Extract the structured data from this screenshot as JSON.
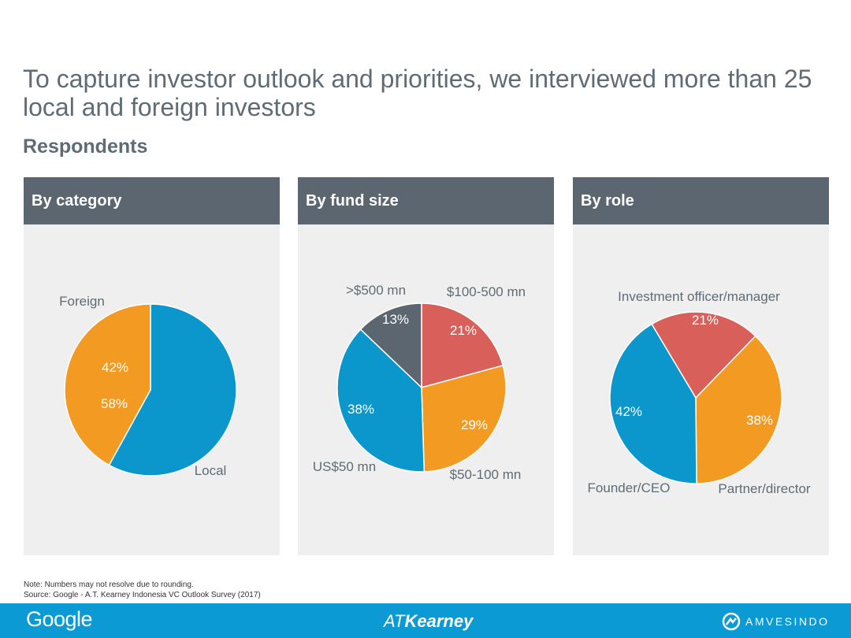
{
  "title": "To capture investor outlook and priorities, we interviewed more than 25 local and foreign investors",
  "subtitle": "Respondents",
  "chart_data": [
    {
      "type": "pie",
      "title": "By category",
      "slices": [
        {
          "label": "Local",
          "value": 58,
          "display": "58%",
          "color": "#0b96cc"
        },
        {
          "label": "Foreign",
          "value": 42,
          "display": "42%",
          "color": "#f29a21"
        }
      ]
    },
    {
      "type": "pie",
      "title": "By fund size",
      "slices": [
        {
          "label": "$100-500 mn",
          "value": 21,
          "display": "21%",
          "color": "#d9605a"
        },
        {
          "label": "$50-100 mn",
          "value": 29,
          "display": "29%",
          "color": "#f29a21"
        },
        {
          "label": "US$50 mn",
          "value": 38,
          "display": "38%",
          "color": "#0b96cc"
        },
        {
          "label": ">$500 mn",
          "value": 13,
          "display": "13%",
          "color": "#5c6670"
        }
      ]
    },
    {
      "type": "pie",
      "title": "By role",
      "slices": [
        {
          "label": "Partner/director",
          "value": 38,
          "display": "38%",
          "color": "#f29a21"
        },
        {
          "label": "Founder/CEO",
          "value": 42,
          "display": "42%",
          "color": "#0b96cc"
        },
        {
          "label": "Investment officer/manager",
          "value": 21,
          "display": "21%",
          "color": "#d9605a"
        }
      ]
    }
  ],
  "note": "Note: Numbers may not resolve due to rounding.",
  "source": "Source: Google - A.T. Kearney Indonesia VC Outlook Survey (2017)",
  "footer": {
    "google": "Google",
    "atkearney_prefix": "AT",
    "atkearney_name": "Kearney",
    "amvesindo": "AMVESINDO"
  }
}
